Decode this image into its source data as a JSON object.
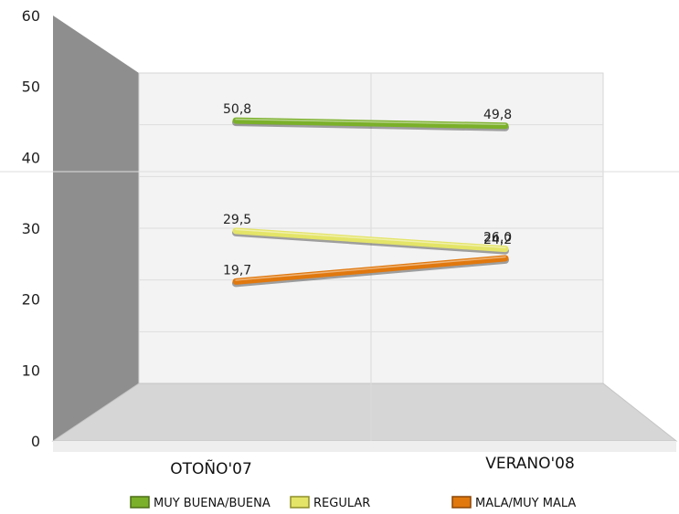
{
  "chart_data": {
    "type": "line",
    "title": "",
    "xlabel": "",
    "ylabel": "",
    "categories": [
      "OTOÑO'07",
      "VERANO'08"
    ],
    "ylim": [
      0,
      60
    ],
    "yticks": [
      "0",
      "10",
      "20",
      "30",
      "40",
      "50",
      "60"
    ],
    "grid": true,
    "legend_position": "bottom",
    "series": [
      {
        "name": "MUY BUENA/BUENA",
        "values": [
          50.8,
          49.8
        ],
        "labels": [
          "50,8",
          "49,8"
        ],
        "color": "#7bb02a"
      },
      {
        "name": "REGULAR",
        "values": [
          29.5,
          26.0
        ],
        "labels": [
          "29,5",
          "26,0"
        ],
        "color": "#e4e468"
      },
      {
        "name": "MALA/MUY MALA",
        "values": [
          19.7,
          24.2
        ],
        "labels": [
          "19,7",
          "24,2"
        ],
        "color": "#e0780e"
      }
    ]
  }
}
